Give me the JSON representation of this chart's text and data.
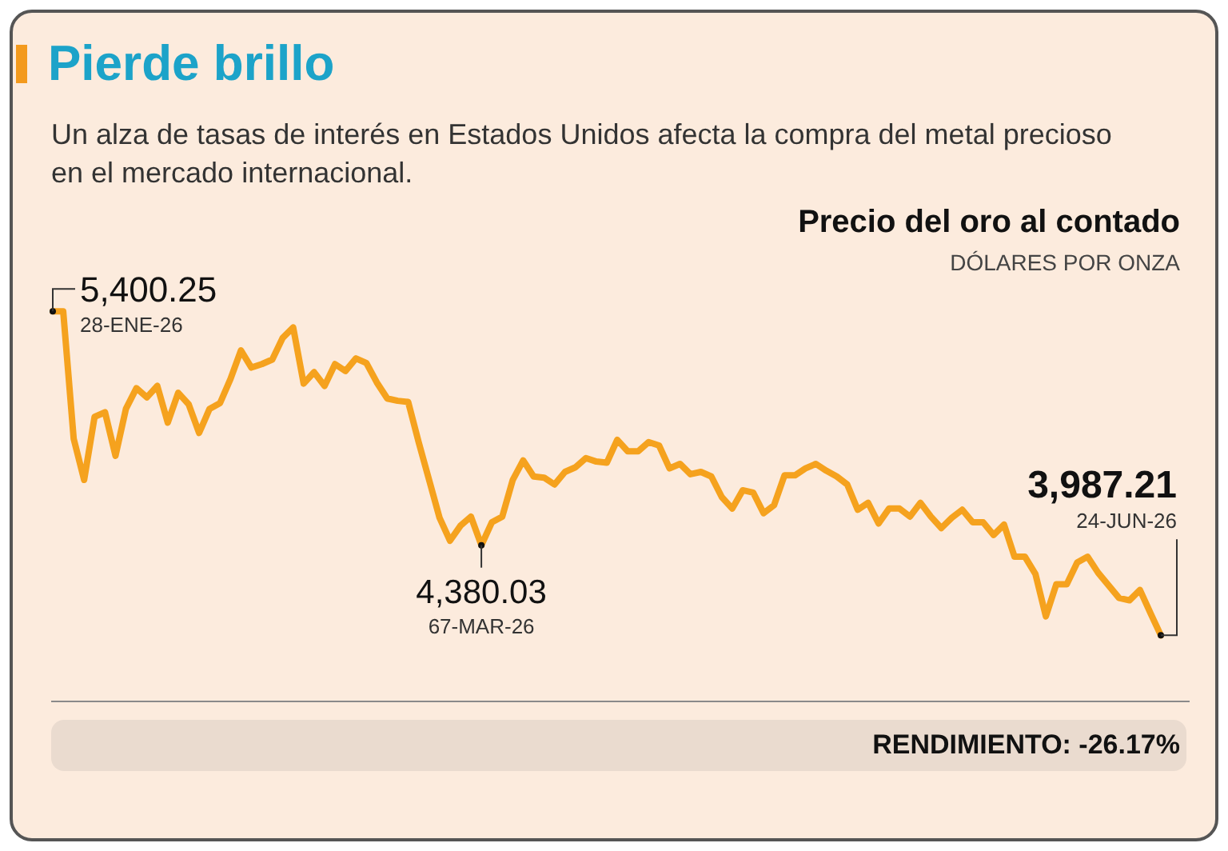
{
  "chart_data": {
    "type": "line",
    "title": "Pierde brillo",
    "subtitle": "Un alza de tasas de interés en Estados Unidos afecta la compra del metal precioso en el mercado internacional.",
    "categories": [
      null,
      null,
      null,
      null,
      null,
      null,
      null,
      null,
      null,
      null,
      null,
      null,
      null,
      null,
      null,
      null,
      null,
      null,
      null,
      null,
      null,
      null,
      null,
      null,
      null,
      null,
      null,
      null,
      null,
      null,
      null,
      null,
      null,
      null,
      null,
      null,
      null,
      null,
      null,
      null,
      null,
      null,
      null,
      null,
      null,
      null,
      null,
      null,
      null,
      null,
      null,
      null,
      null,
      null,
      null,
      null,
      null,
      null,
      null,
      null,
      null,
      null,
      null,
      null,
      null,
      null,
      null,
      null,
      null,
      null,
      null,
      null,
      null,
      null,
      null,
      null,
      null,
      null,
      null,
      null,
      null,
      null,
      null,
      null,
      null,
      null,
      null,
      null,
      null,
      null,
      null,
      null,
      null,
      null,
      null,
      null,
      null,
      null,
      null,
      null,
      null,
      null,
      null,
      null,
      null,
      null,
      null
    ],
    "series": [
      {
        "color": "#f5a21e",
        "values": [
          5400.25,
          5400,
          4845,
          4665,
          4940,
          4960,
          4770,
          4975,
          5065,
          5025,
          5075,
          4915,
          5045,
          4995,
          4870,
          4975,
          5000,
          5105,
          5230,
          5155,
          5170,
          5190,
          5285,
          5330,
          5085,
          5135,
          5075,
          5170,
          5140,
          5195,
          5175,
          5090,
          5020,
          5010,
          5005,
          4830,
          4665,
          4500,
          4400,
          4465,
          4505,
          4380.03,
          4480,
          4505,
          4665,
          4750,
          4680,
          4675,
          4645,
          4700,
          4720,
          4760,
          4745,
          4740,
          4840,
          4790,
          4790,
          4830,
          4815,
          4715,
          4735,
          4690,
          4700,
          4680,
          4590,
          4540,
          4620,
          4610,
          4520,
          4555,
          4685,
          4685,
          4715,
          4735,
          4705,
          4680,
          4645,
          4535,
          4565,
          4475,
          4540,
          4540,
          4505,
          4565,
          4505,
          4455,
          4500,
          4535,
          4480,
          4480,
          4425,
          4470,
          4330,
          4330,
          4255,
          4070,
          4210,
          4210,
          4305,
          4330,
          4260,
          4205,
          4150,
          4140,
          4185,
          4085,
          3987.21
        ],
        "value_labels": [
          "5,400.25",
          null,
          null,
          null,
          null,
          null,
          null,
          null,
          null,
          null,
          null,
          null,
          null,
          null,
          null,
          null,
          null,
          null,
          null,
          null,
          null,
          null,
          null,
          null,
          null,
          null,
          null,
          null,
          null,
          null,
          null,
          null,
          null,
          null,
          null,
          null,
          null,
          null,
          null,
          null,
          null,
          "4,380.03",
          null,
          null,
          null,
          null,
          null,
          null,
          null,
          null,
          null,
          null,
          null,
          null,
          null,
          null,
          null,
          null,
          null,
          null,
          null,
          null,
          null,
          null,
          null,
          null,
          null,
          null,
          null,
          null,
          null,
          null,
          null,
          null,
          null,
          null,
          null,
          null,
          null,
          null,
          null,
          null,
          null,
          null,
          null,
          null,
          null,
          null,
          null,
          null,
          null,
          null,
          null,
          null,
          null,
          null,
          null,
          null,
          null,
          null,
          null,
          null,
          null,
          null,
          null,
          null,
          "3,987.21"
        ]
      }
    ],
    "annotations": [
      "28-ENE-26",
      "67-MAR-26",
      "24-JUN-26",
      "Precio del oro al contado",
      "DÓLARES POR ONZA",
      "RENDIMIENTO: -26.17%"
    ],
    "grid": false,
    "legend": false,
    "marker": "none",
    "line_style": "solid"
  }
}
